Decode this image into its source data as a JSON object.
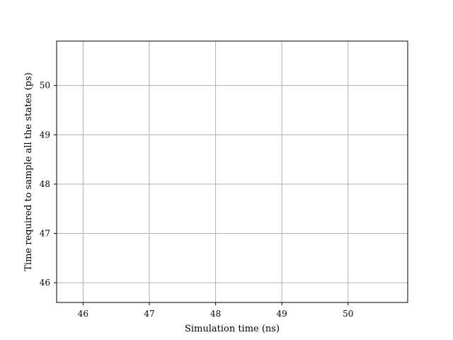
{
  "chart_data": {
    "type": "line",
    "title": "",
    "xlabel": "Simulation time (ns)",
    "ylabel": "Time required to sample all the states (ps)",
    "xlim": [
      45.6,
      50.9
    ],
    "ylim": [
      45.6,
      50.9
    ],
    "xticks": [
      46,
      47,
      48,
      49,
      50
    ],
    "yticks": [
      46,
      47,
      48,
      49,
      50
    ],
    "grid": true,
    "legend": "none",
    "series": []
  }
}
